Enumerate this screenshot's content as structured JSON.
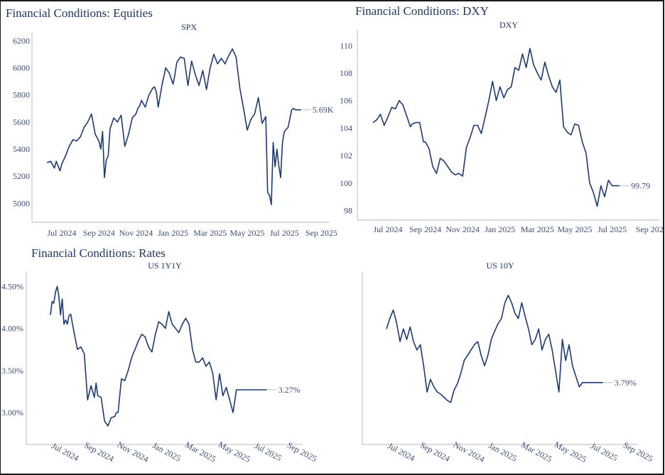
{
  "page": {
    "section_titles": {
      "equities": "Financial Conditions: Equities",
      "dxy": "Financial Conditions: DXY",
      "rates": "Financial Conditions: Rates"
    }
  },
  "chart_data": [
    {
      "id": "spx",
      "type": "line",
      "title": "SPX",
      "section": "Financial Conditions: Equities",
      "xlabel": "",
      "ylabel": "",
      "x_tick_labels": [
        "Jul 2024",
        "Sep 2024",
        "Nov 2024",
        "Jan 2025",
        "Mar 2025",
        "May 2025",
        "Jul 2025",
        "Sep 2025"
      ],
      "x_tick_rotated": false,
      "y_ticks": [
        5000,
        5200,
        5400,
        5600,
        5800,
        6000,
        6200
      ],
      "y_tick_labels": [
        "5000",
        "5200",
        "5400",
        "5600",
        "5800",
        "6000",
        "6200"
      ],
      "ylim": [
        4860,
        6260
      ],
      "xlim_months": [
        -0.8,
        15.2
      ],
      "end_label": "5.69K",
      "grid": false,
      "series": [
        {
          "name": "SPX",
          "x_months": [
            -0.8,
            -0.6,
            -0.4,
            -0.3,
            -0.1,
            0.0,
            0.2,
            0.4,
            0.6,
            0.8,
            1.0,
            1.2,
            1.4,
            1.6,
            1.8,
            2.0,
            2.1,
            2.2,
            2.3,
            2.4,
            2.5,
            2.6,
            2.8,
            3.0,
            3.2,
            3.4,
            3.6,
            3.8,
            4.0,
            4.1,
            4.2,
            4.3,
            4.5,
            4.7,
            4.9,
            5.0,
            5.1,
            5.2,
            5.4,
            5.6,
            5.8,
            6.0,
            6.1,
            6.2,
            6.4,
            6.6,
            6.8,
            7.0,
            7.2,
            7.4,
            7.6,
            7.8,
            8.0,
            8.2,
            8.4,
            8.6,
            8.8,
            9.0,
            9.2,
            9.4,
            9.6,
            9.8,
            10.0,
            10.2,
            10.4,
            10.6,
            10.8,
            11.0,
            11.1,
            11.2,
            11.3,
            11.4,
            11.5,
            11.6,
            11.7,
            11.8,
            11.9,
            12.0,
            12.2,
            12.4,
            12.5,
            12.6,
            12.8,
            12.9
          ],
          "values": [
            5300,
            5310,
            5260,
            5310,
            5240,
            5290,
            5350,
            5420,
            5470,
            5460,
            5490,
            5560,
            5600,
            5660,
            5510,
            5460,
            5400,
            5530,
            5190,
            5320,
            5350,
            5550,
            5630,
            5600,
            5650,
            5420,
            5510,
            5630,
            5660,
            5700,
            5720,
            5760,
            5710,
            5800,
            5850,
            5860,
            5820,
            5710,
            5870,
            6000,
            5960,
            5880,
            5950,
            6040,
            6080,
            6070,
            5870,
            6050,
            5950,
            5870,
            5980,
            5840,
            6000,
            6100,
            6030,
            6070,
            6030,
            6090,
            6140,
            6080,
            5850,
            5700,
            5540,
            5620,
            5660,
            5780,
            5590,
            5640,
            5080,
            5060,
            4990,
            5450,
            5270,
            5400,
            5280,
            5190,
            5450,
            5530,
            5560,
            5690,
            5700,
            5690,
            5690,
            5690
          ]
        }
      ]
    },
    {
      "id": "dxy",
      "type": "line",
      "title": "DXY",
      "section": "Financial Conditions: DXY",
      "xlabel": "",
      "ylabel": "",
      "x_tick_labels": [
        "Jul 2024",
        "Sep 2024",
        "Nov 2024",
        "Jan 2025",
        "Mar 2025",
        "May 2025",
        "Jul 2025",
        "Sep 202"
      ],
      "x_tick_rotated": false,
      "y_ticks": [
        98,
        100,
        102,
        104,
        106,
        108,
        110
      ],
      "y_tick_labels": [
        "98",
        "100",
        "102",
        "104",
        "106",
        "108",
        "110"
      ],
      "ylim": [
        97.3,
        111.1
      ],
      "xlim_months": [
        -0.8,
        15.4
      ],
      "end_label": "99.79",
      "grid": false,
      "series": [
        {
          "name": "DXY",
          "x_months": [
            -0.8,
            -0.6,
            -0.4,
            -0.2,
            0.0,
            0.2,
            0.4,
            0.6,
            0.8,
            1.0,
            1.2,
            1.3,
            1.5,
            1.7,
            1.9,
            2.0,
            2.2,
            2.4,
            2.6,
            2.8,
            3.0,
            3.2,
            3.4,
            3.6,
            3.8,
            4.0,
            4.2,
            4.4,
            4.6,
            4.8,
            5.0,
            5.2,
            5.4,
            5.6,
            5.8,
            6.0,
            6.2,
            6.4,
            6.6,
            6.8,
            7.0,
            7.2,
            7.4,
            7.6,
            7.8,
            8.0,
            8.2,
            8.4,
            8.6,
            8.8,
            9.0,
            9.2,
            9.4,
            9.6,
            9.8,
            10.0,
            10.2,
            10.4,
            10.6,
            10.8,
            11.0,
            11.2,
            11.4,
            11.6,
            11.8,
            12.0,
            12.2,
            12.3,
            12.4
          ],
          "values": [
            104.4,
            104.6,
            105.0,
            104.2,
            104.8,
            105.5,
            105.4,
            106.0,
            105.7,
            104.9,
            104.1,
            104.3,
            104.4,
            104.4,
            103.0,
            103.0,
            102.5,
            101.2,
            100.7,
            101.8,
            101.6,
            101.2,
            100.8,
            100.6,
            100.7,
            100.5,
            102.6,
            103.3,
            104.2,
            104.2,
            103.6,
            104.8,
            106.0,
            107.4,
            106.0,
            107.0,
            106.2,
            106.8,
            107.0,
            108.4,
            108.2,
            109.4,
            108.4,
            109.8,
            108.6,
            108.0,
            107.5,
            108.8,
            107.8,
            107.0,
            106.6,
            107.5,
            104.1,
            103.7,
            103.5,
            104.3,
            104.2,
            103.0,
            102.2,
            100.0,
            99.3,
            98.3,
            99.8,
            99.0,
            100.2,
            99.8,
            99.8,
            99.8,
            99.8
          ]
        }
      ]
    },
    {
      "id": "us1y1y",
      "type": "line",
      "title": "US 1Y1Y",
      "section": "Financial Conditions: Rates",
      "xlabel": "",
      "ylabel": "",
      "x_tick_labels": [
        "Jul 2024",
        "Sep 2024",
        "Nov 2024",
        "Jan 2025",
        "Mar 2025",
        "May 2025",
        "Jul 2025",
        "Sep 2025"
      ],
      "x_tick_rotated": true,
      "y_ticks": [
        3.0,
        3.5,
        4.0,
        4.5
      ],
      "y_tick_labels": [
        "3.00%",
        "3.50%",
        "4.00%",
        "4.50%"
      ],
      "ylim": [
        2.62,
        4.68
      ],
      "xlim_months": [
        -0.8,
        15.2
      ],
      "end_label": "3.27%",
      "grid": false,
      "series": [
        {
          "name": "US 1Y1Y",
          "x_months": [
            -0.8,
            -0.7,
            -0.6,
            -0.5,
            -0.4,
            -0.3,
            -0.2,
            -0.1,
            0.0,
            0.1,
            0.2,
            0.3,
            0.4,
            0.6,
            0.8,
            1.0,
            1.2,
            1.4,
            1.6,
            1.8,
            1.9,
            2.0,
            2.2,
            2.4,
            2.6,
            2.8,
            3.0,
            3.1,
            3.2,
            3.4,
            3.6,
            3.8,
            4.0,
            4.2,
            4.4,
            4.6,
            4.8,
            5.0,
            5.2,
            5.4,
            5.6,
            5.8,
            6.0,
            6.2,
            6.4,
            6.6,
            6.8,
            7.0,
            7.2,
            7.4,
            7.6,
            7.8,
            8.0,
            8.2,
            8.4,
            8.6,
            8.8,
            9.0,
            9.2,
            9.4,
            9.6,
            9.8,
            10.0,
            10.2,
            10.4,
            10.6,
            10.8,
            11.0,
            11.2,
            11.4,
            11.6,
            11.7,
            11.8,
            12.0
          ],
          "values": [
            4.16,
            4.32,
            4.3,
            4.43,
            4.5,
            4.38,
            4.16,
            4.35,
            4.05,
            4.1,
            4.05,
            4.15,
            4.17,
            3.95,
            3.75,
            3.78,
            3.7,
            3.15,
            3.32,
            3.18,
            3.35,
            3.2,
            3.18,
            2.9,
            2.84,
            2.94,
            2.95,
            3.0,
            3.0,
            3.4,
            3.38,
            3.5,
            3.65,
            3.75,
            3.85,
            3.93,
            3.9,
            3.78,
            3.72,
            3.92,
            4.08,
            4.05,
            4.0,
            4.2,
            4.05,
            4.0,
            3.95,
            4.05,
            4.12,
            4.05,
            3.75,
            3.6,
            3.6,
            3.65,
            3.55,
            3.6,
            3.47,
            3.15,
            3.46,
            3.2,
            3.3,
            3.15,
            3.0,
            3.27,
            3.27,
            3.27,
            3.27,
            3.27,
            3.27,
            3.27,
            3.27,
            3.27,
            3.27,
            3.27
          ]
        }
      ]
    },
    {
      "id": "us10y",
      "type": "line",
      "title": "US 10Y",
      "section": "Financial Conditions: Rates",
      "xlabel": "",
      "ylabel": "",
      "x_tick_labels": [
        "Jul 2024",
        "Sep 2024",
        "Nov 2024",
        "Jan 2025",
        "Mar 2025",
        "May 2025",
        "Jul 2025",
        "Sep 2025"
      ],
      "x_tick_rotated": true,
      "y_ticks": [],
      "y_tick_labels": [],
      "ylim": [
        3.2,
        4.85
      ],
      "xlim_months": [
        -0.8,
        15.2
      ],
      "end_label": "3.79%",
      "grid": false,
      "series": [
        {
          "name": "US 10Y",
          "x_months": [
            -0.8,
            -0.6,
            -0.4,
            -0.2,
            0.0,
            0.2,
            0.4,
            0.6,
            0.8,
            1.0,
            1.2,
            1.4,
            1.6,
            1.8,
            2.0,
            2.2,
            2.4,
            2.6,
            2.8,
            3.0,
            3.2,
            3.4,
            3.6,
            3.8,
            4.0,
            4.2,
            4.4,
            4.6,
            4.8,
            5.0,
            5.2,
            5.4,
            5.6,
            5.8,
            6.0,
            6.2,
            6.4,
            6.6,
            6.8,
            7.0,
            7.2,
            7.4,
            7.6,
            7.8,
            8.0,
            8.2,
            8.4,
            8.6,
            8.8,
            9.0,
            9.2,
            9.4,
            9.6,
            9.8,
            10.0,
            10.2,
            10.4,
            10.6,
            10.8,
            11.0,
            11.2,
            11.4,
            11.6,
            11.8,
            12.0
          ],
          "values": [
            4.3,
            4.4,
            4.48,
            4.36,
            4.18,
            4.3,
            4.2,
            4.32,
            4.18,
            4.1,
            4.15,
            3.95,
            3.7,
            3.82,
            3.75,
            3.7,
            3.68,
            3.65,
            3.62,
            3.6,
            3.72,
            3.78,
            3.88,
            4.0,
            4.05,
            4.1,
            4.15,
            4.18,
            4.05,
            3.95,
            4.05,
            4.2,
            4.28,
            4.35,
            4.4,
            4.55,
            4.62,
            4.55,
            4.45,
            4.4,
            4.55,
            4.42,
            4.3,
            4.15,
            4.2,
            4.3,
            4.1,
            4.2,
            4.25,
            4.1,
            3.9,
            3.7,
            4.2,
            4.0,
            4.15,
            3.95,
            3.85,
            3.75,
            3.79,
            3.79,
            3.79,
            3.79,
            3.79,
            3.79,
            3.79
          ]
        }
      ]
    }
  ]
}
